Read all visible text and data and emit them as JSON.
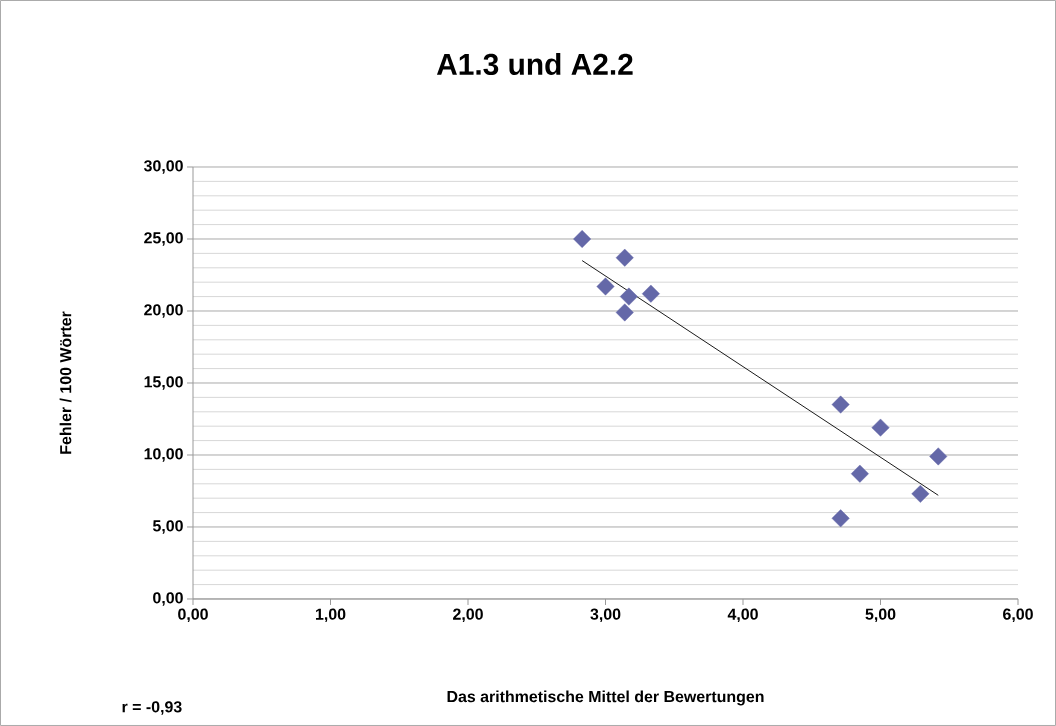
{
  "chart_data": {
    "type": "scatter",
    "title": "A1.3 und A2.2",
    "xlabel": "Das arithmetische Mittel der Bewertungen",
    "ylabel": "Fehler / 100 Wörter",
    "annotations": [
      "r = -0,93"
    ],
    "series": [
      {
        "color": "#6468a8",
        "marker": "diamond",
        "x": [
          2.83,
          3.14,
          3.0,
          3.17,
          3.33,
          3.14,
          4.71,
          5.0,
          5.42,
          4.85,
          5.29,
          4.71
        ],
        "values": [
          25.0,
          23.7,
          21.7,
          21.0,
          21.2,
          19.9,
          13.5,
          11.9,
          9.9,
          8.7,
          7.3,
          5.6
        ]
      },
      {
        "type": "line",
        "color": "#000000",
        "marker": "none",
        "x": [
          2.83,
          5.42
        ],
        "values": [
          23.5,
          7.2
        ]
      }
    ],
    "xlim": [
      0,
      6
    ],
    "ylim": [
      0,
      30
    ],
    "xticks": [
      {
        "value": 0,
        "label": "0,00"
      },
      {
        "value": 1,
        "label": "1,00"
      },
      {
        "value": 2,
        "label": "2,00"
      },
      {
        "value": 3,
        "label": "3,00"
      },
      {
        "value": 4,
        "label": "4,00"
      },
      {
        "value": 5,
        "label": "5,00"
      },
      {
        "value": 6,
        "label": "6,00"
      }
    ],
    "yticks": [
      {
        "value": 0,
        "label": "0,00"
      },
      {
        "value": 5,
        "label": "5,00"
      },
      {
        "value": 10,
        "label": "10,00"
      },
      {
        "value": 15,
        "label": "15,00"
      },
      {
        "value": 20,
        "label": "20,00"
      },
      {
        "value": 25,
        "label": "25,00"
      },
      {
        "value": 30,
        "label": "30,00"
      }
    ],
    "grid": "y"
  }
}
